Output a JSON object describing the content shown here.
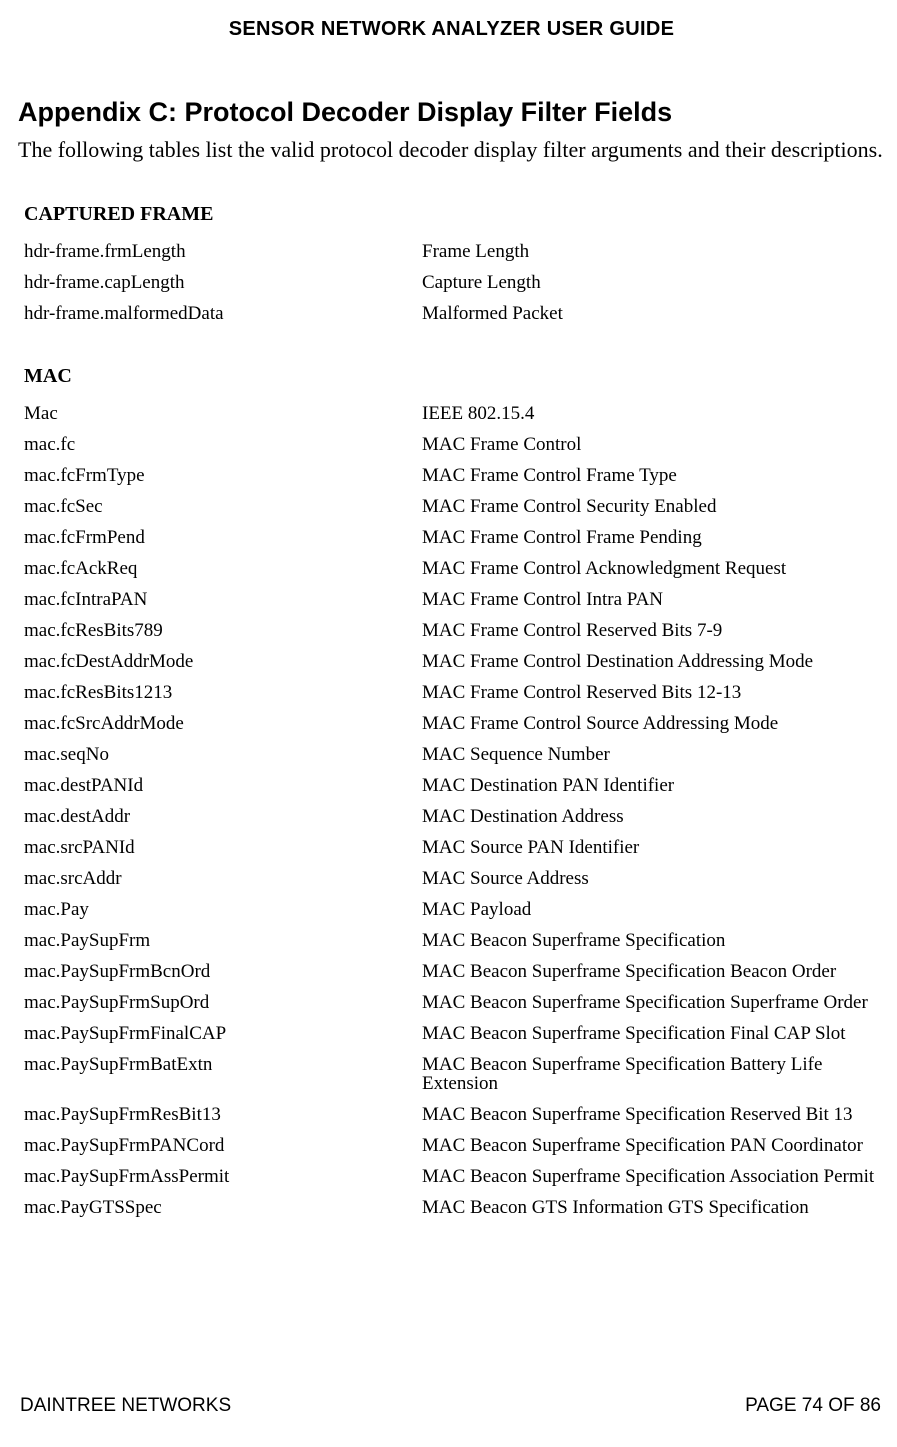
{
  "header": {
    "title": "SENSOR NETWORK ANALYZER USER GUIDE"
  },
  "appendix": {
    "title": "Appendix C: Protocol Decoder Display Filter Fields",
    "intro": "The following tables list the valid protocol decoder display filter arguments and their descriptions."
  },
  "sections": [
    {
      "heading": "CAPTURED FRAME",
      "rows": [
        {
          "field": "hdr-frame.frmLength",
          "desc": "Frame Length"
        },
        {
          "field": "hdr-frame.capLength",
          "desc": "Capture Length"
        },
        {
          "field": "hdr-frame.malformedData",
          "desc": "Malformed Packet"
        }
      ]
    },
    {
      "heading": "MAC",
      "rows": [
        {
          "field": "Mac",
          "desc": "IEEE 802.15.4"
        },
        {
          "field": "mac.fc",
          "desc": "MAC Frame Control"
        },
        {
          "field": "mac.fcFrmType",
          "desc": "MAC Frame Control Frame Type"
        },
        {
          "field": "mac.fcSec",
          "desc": "MAC Frame Control Security Enabled"
        },
        {
          "field": "mac.fcFrmPend",
          "desc": "MAC Frame Control Frame Pending"
        },
        {
          "field": "mac.fcAckReq",
          "desc": "MAC Frame Control Acknowledgment Request"
        },
        {
          "field": "mac.fcIntraPAN",
          "desc": "MAC Frame Control Intra PAN"
        },
        {
          "field": "mac.fcResBits789",
          "desc": "MAC Frame Control Reserved Bits 7-9"
        },
        {
          "field": "mac.fcDestAddrMode",
          "desc": "MAC Frame Control Destination Addressing Mode"
        },
        {
          "field": "mac.fcResBits1213",
          "desc": "MAC Frame Control Reserved Bits 12-13"
        },
        {
          "field": "mac.fcSrcAddrMode",
          "desc": "MAC Frame Control Source Addressing Mode"
        },
        {
          "field": "mac.seqNo",
          "desc": "MAC Sequence Number"
        },
        {
          "field": "mac.destPANId",
          "desc": "MAC Destination PAN Identifier"
        },
        {
          "field": "mac.destAddr",
          "desc": "MAC Destination Address"
        },
        {
          "field": "mac.srcPANId",
          "desc": "MAC Source PAN Identifier"
        },
        {
          "field": "mac.srcAddr",
          "desc": "MAC Source Address"
        },
        {
          "field": "mac.Pay",
          "desc": "MAC Payload"
        },
        {
          "field": "mac.PaySupFrm",
          "desc": "MAC Beacon Superframe Specification"
        },
        {
          "field": "mac.PaySupFrmBcnOrd",
          "desc": "MAC Beacon Superframe Specification Beacon Order"
        },
        {
          "field": "mac.PaySupFrmSupOrd",
          "desc": "MAC Beacon Superframe Specification Superframe Order"
        },
        {
          "field": "mac.PaySupFrmFinalCAP",
          "desc": "MAC Beacon Superframe Specification Final CAP Slot"
        },
        {
          "field": "mac.PaySupFrmBatExtn",
          "desc": "MAC Beacon Superframe Specification Battery Life Extension"
        },
        {
          "field": "mac.PaySupFrmResBit13",
          "desc": "MAC Beacon Superframe Specification Reserved Bit 13"
        },
        {
          "field": "mac.PaySupFrmPANCord",
          "desc": "MAC Beacon Superframe Specification PAN Coordinator"
        },
        {
          "field": "mac.PaySupFrmAssPermit",
          "desc": "MAC Beacon Superframe Specification Association Permit"
        },
        {
          "field": "mac.PayGTSSpec",
          "desc": "MAC Beacon GTS Information GTS Specification"
        }
      ]
    }
  ],
  "footer": {
    "company": "DAINTREE NETWORKS",
    "page": "PAGE 74 OF 86"
  }
}
